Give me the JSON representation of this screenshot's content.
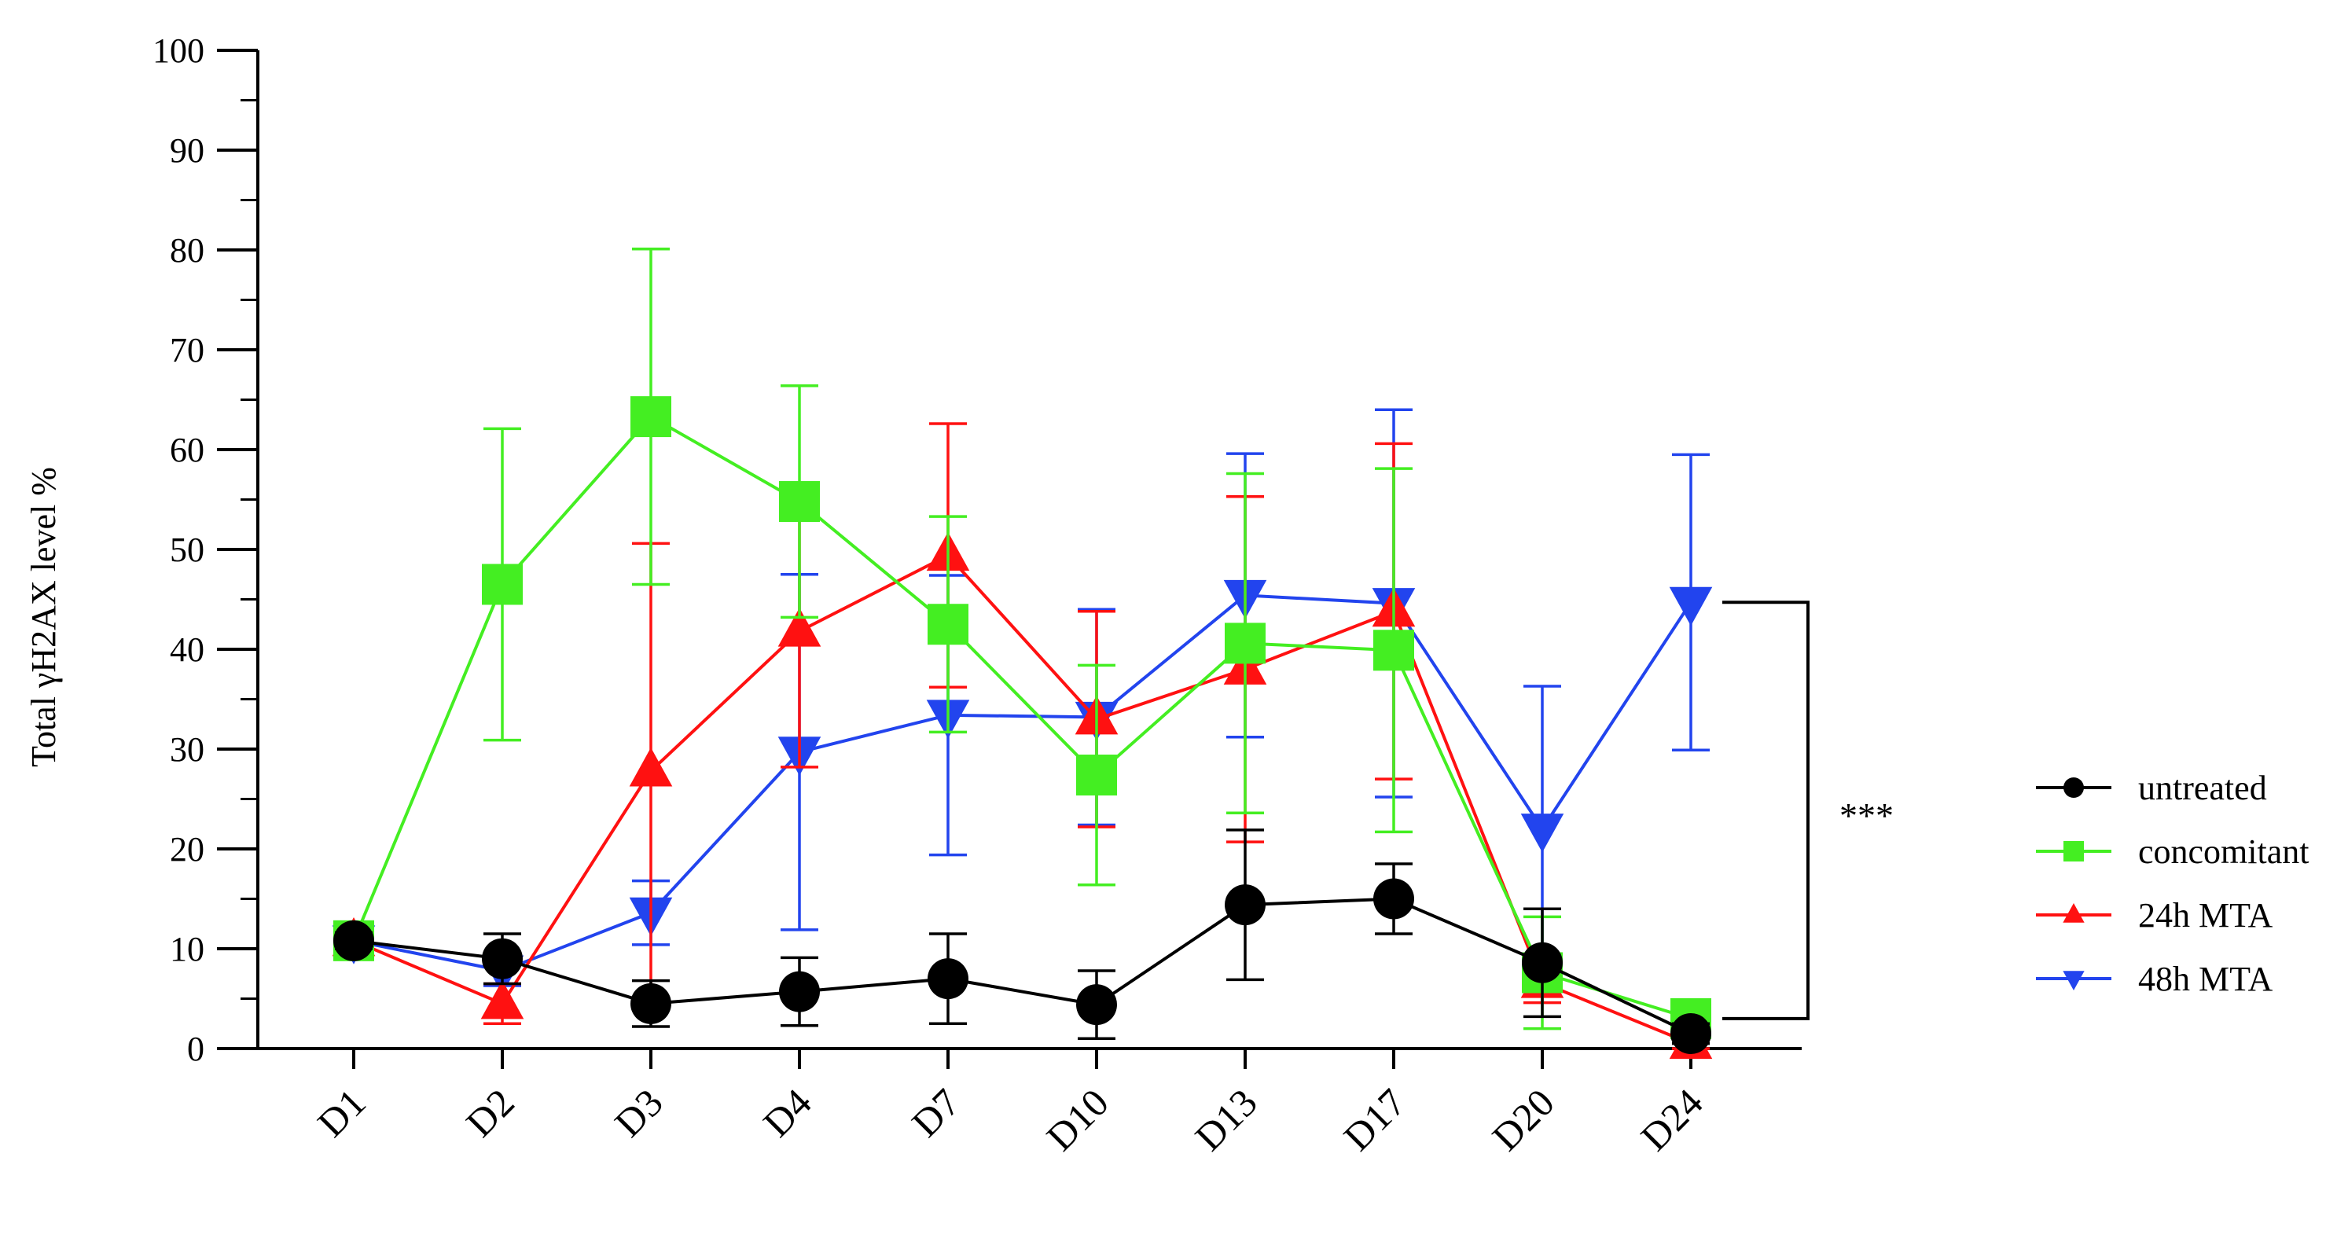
{
  "chart_data": {
    "type": "line",
    "ylabel": "Total γH2AX level %",
    "ylim": [
      0,
      100
    ],
    "yticks": [
      0,
      10,
      20,
      30,
      40,
      50,
      60,
      70,
      80,
      90,
      100
    ],
    "categories": [
      "D1",
      "D2",
      "D3",
      "D4",
      "D7",
      "D10",
      "D13",
      "D17",
      "D20",
      "D24"
    ],
    "legend_position": "right",
    "series": [
      {
        "name": "untreated",
        "color": "#000000",
        "marker": "circle",
        "values": [
          10.8,
          9.0,
          4.5,
          5.7,
          7.0,
          4.4,
          14.4,
          15.0,
          8.6,
          1.5
        ],
        "errors": [
          0.8,
          2.5,
          2.3,
          3.4,
          4.5,
          3.4,
          7.5,
          3.5,
          5.4,
          1.0
        ]
      },
      {
        "name": "concomitant",
        "color": "#44ee22",
        "marker": "square",
        "values": [
          10.8,
          46.5,
          63.3,
          54.8,
          42.5,
          27.4,
          40.6,
          39.9,
          7.6,
          3.0
        ],
        "errors": [
          0.8,
          15.6,
          16.8,
          11.6,
          10.8,
          11.0,
          17.0,
          18.2,
          5.6,
          1.0
        ]
      },
      {
        "name": "24h MTA",
        "color": "#ff1111",
        "marker": "triangle-up",
        "values": [
          10.8,
          4.5,
          27.8,
          41.8,
          49.4,
          33.0,
          38.0,
          43.8,
          6.6,
          0.5
        ],
        "errors": [
          0.8,
          2.0,
          22.8,
          13.6,
          13.2,
          10.8,
          17.3,
          16.8,
          2.0,
          0.5
        ]
      },
      {
        "name": "48h MTA",
        "color": "#2244ee",
        "marker": "triangle-down",
        "values": [
          10.8,
          7.8,
          13.6,
          29.7,
          33.4,
          33.2,
          45.4,
          44.6,
          22.0,
          44.7
        ],
        "errors": [
          0.8,
          1.5,
          3.2,
          17.8,
          14.0,
          10.8,
          14.2,
          19.4,
          14.3,
          14.8
        ]
      }
    ],
    "annotation": {
      "text": "***",
      "from_series": "48h MTA",
      "to_series": "concomitant",
      "category": "D24"
    }
  }
}
